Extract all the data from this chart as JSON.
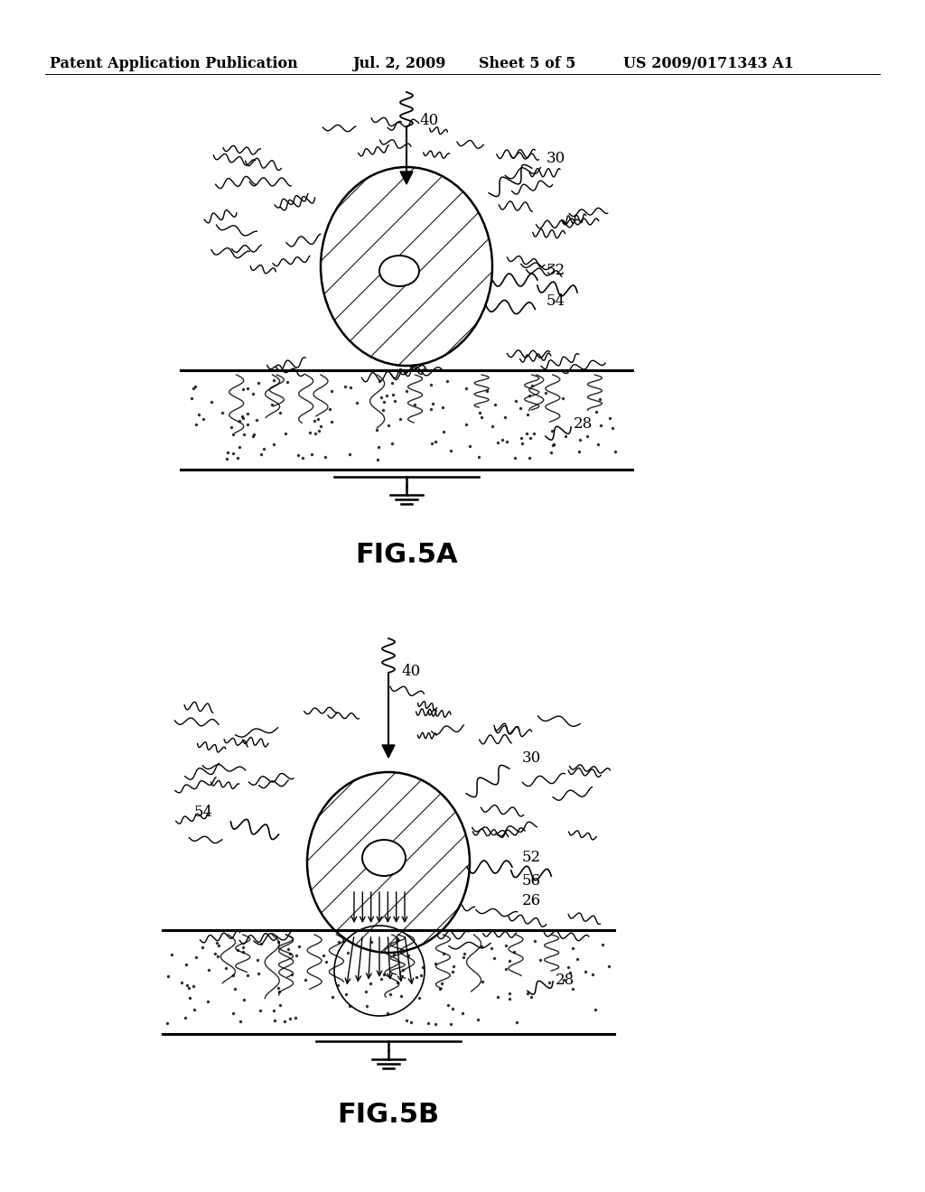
{
  "bg_color": "#ffffff",
  "header_text": "Patent Application Publication",
  "header_date": "Jul. 2, 2009",
  "header_sheet": "Sheet 5 of 5",
  "header_patent": "US 2009/0171343 A1",
  "fig5a_label": "FIG.5A",
  "fig5b_label": "FIG.5B",
  "label_40_5a": "40",
  "label_30_5a": "30",
  "label_52_5a": "52",
  "label_54_5a": "54",
  "label_28_5a": "28",
  "label_40_5b": "40",
  "label_30_5b": "30",
  "label_52_5b": "52",
  "label_54_5b": "54",
  "label_56_5b": "56",
  "label_26_5b": "26",
  "label_28_5b": "28",
  "cx5a": 450,
  "cy5a_ball": 295,
  "rx5a": 95,
  "ry5a": 110,
  "cx5b": 430,
  "cy5b_ball": 920,
  "rx5b": 90,
  "ry5b": 100,
  "surf_y5a": 410,
  "tissue_bot5a": 520,
  "surf_y5b": 1030,
  "tissue_bot5b": 1145
}
